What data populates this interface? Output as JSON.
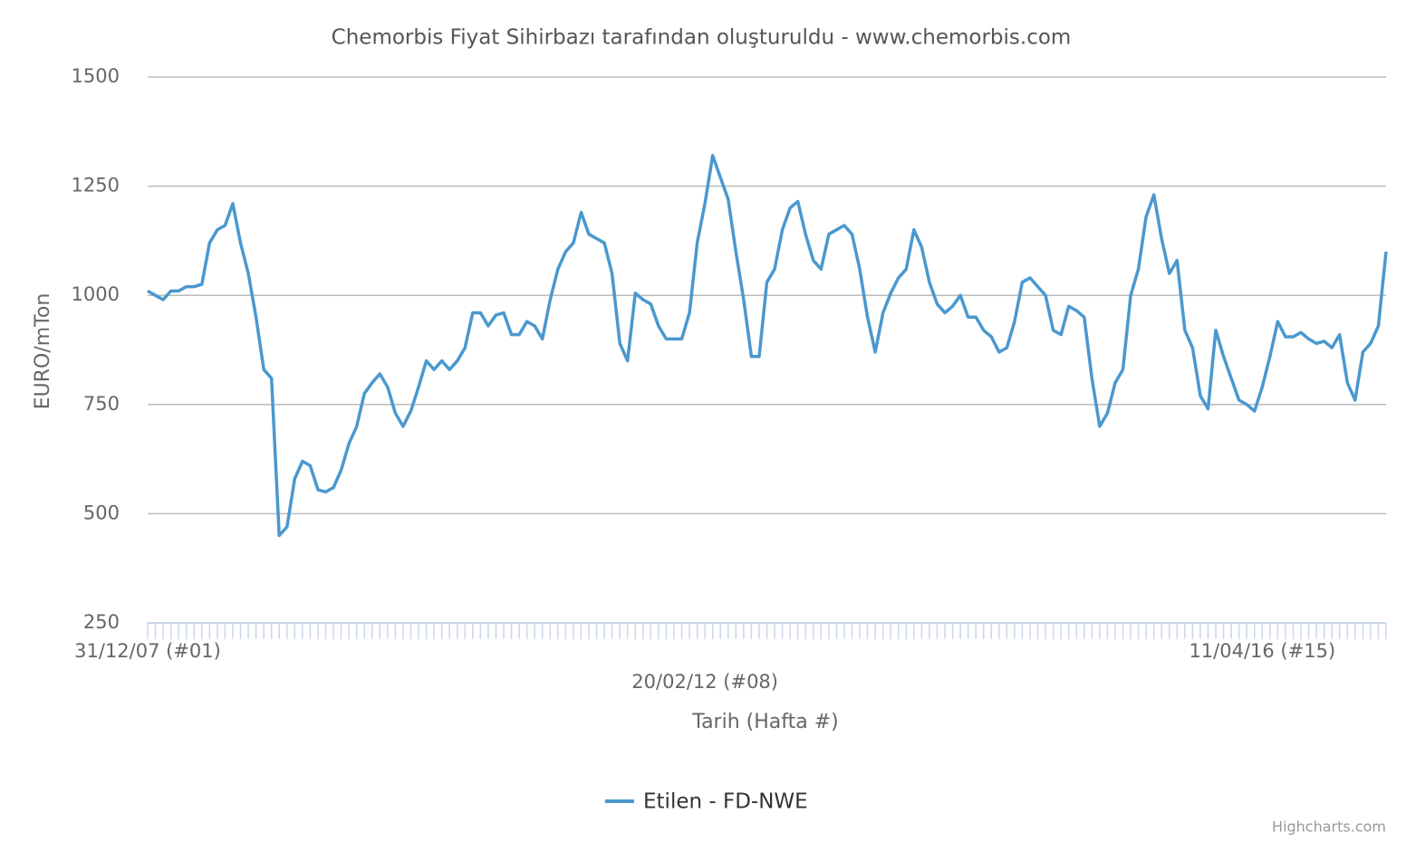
{
  "chart_data": {
    "type": "line",
    "title": "Chemorbis Fiyat Sihirbazı tarafından oluşturuldu - www.chemorbis.com",
    "y_label": "EURO/mTon",
    "x_label": "Tarih (Hafta #)",
    "credits": "Highcharts.com",
    "categories": [
      "31/12/07 (#01)",
      null,
      null,
      null,
      null,
      null,
      null,
      null,
      null,
      null,
      null,
      null,
      null,
      null,
      null,
      null,
      null,
      null,
      null,
      null,
      null,
      null,
      null,
      null,
      null,
      null,
      null,
      null,
      null,
      null,
      null,
      null,
      null,
      null,
      null,
      null,
      null,
      null,
      null,
      null,
      null,
      null,
      null,
      null,
      null,
      null,
      null,
      null,
      null,
      null,
      null,
      null,
      null,
      null,
      null,
      null,
      null,
      null,
      null,
      null,
      null,
      null,
      null,
      null,
      null,
      null,
      null,
      null,
      null,
      null,
      null,
      null,
      "20/02/12 (#08)",
      null,
      null,
      null,
      null,
      null,
      null,
      null,
      null,
      null,
      null,
      null,
      null,
      null,
      null,
      null,
      null,
      null,
      null,
      null,
      null,
      null,
      null,
      null,
      null,
      null,
      null,
      null,
      null,
      null,
      null,
      null,
      null,
      null,
      null,
      null,
      null,
      null,
      null,
      null,
      null,
      null,
      null,
      null,
      null,
      null,
      null,
      null,
      null,
      null,
      null,
      null,
      null,
      null,
      null,
      null,
      null,
      null,
      null,
      null,
      null,
      null,
      null,
      null,
      null,
      null,
      null,
      null,
      null,
      null,
      null,
      null,
      "11/04/16 (#15)",
      null,
      null,
      null,
      null,
      null,
      null,
      null,
      null,
      null,
      null,
      null,
      null,
      null,
      null,
      null,
      null
    ],
    "series": [
      {
        "name": "Etilen - FD-NWE",
        "color": "#4a98cf",
        "values": [
          1010,
          1000,
          990,
          1010,
          1010,
          1020,
          1020,
          1025,
          1120,
          1150,
          1160,
          1210,
          1120,
          1050,
          950,
          830,
          810,
          450,
          470,
          580,
          620,
          610,
          555,
          550,
          560,
          600,
          660,
          700,
          775,
          800,
          820,
          790,
          730,
          700,
          735,
          790,
          850,
          830,
          850,
          830,
          850,
          880,
          960,
          960,
          930,
          955,
          960,
          910,
          910,
          940,
          930,
          900,
          990,
          1060,
          1100,
          1120,
          1190,
          1140,
          1130,
          1120,
          1050,
          890,
          850,
          1005,
          990,
          980,
          930,
          900,
          900,
          900,
          960,
          1120,
          1210,
          1320,
          1270,
          1220,
          1100,
          990,
          860,
          860,
          1030,
          1060,
          1150,
          1200,
          1215,
          1140,
          1080,
          1060,
          1140,
          1150,
          1160,
          1140,
          1060,
          950,
          870,
          960,
          1005,
          1040,
          1060,
          1150,
          1110,
          1030,
          980,
          960,
          975,
          1000,
          950,
          950,
          920,
          905,
          870,
          880,
          940,
          1030,
          1040,
          1020,
          1000,
          920,
          910,
          975,
          965,
          950,
          810,
          700,
          730,
          800,
          830,
          1000,
          1060,
          1180,
          1230,
          1130,
          1050,
          1080,
          920,
          880,
          770,
          740,
          920,
          860,
          810,
          760,
          750,
          735,
          790,
          860,
          940,
          905,
          905,
          915,
          900,
          890,
          895,
          880,
          910,
          800,
          760,
          870,
          890,
          930,
          1100
        ]
      }
    ],
    "ylim": [
      250,
      1500
    ],
    "yticks": [
      250,
      500,
      750,
      1000,
      1250,
      1500
    ],
    "grid": true
  }
}
